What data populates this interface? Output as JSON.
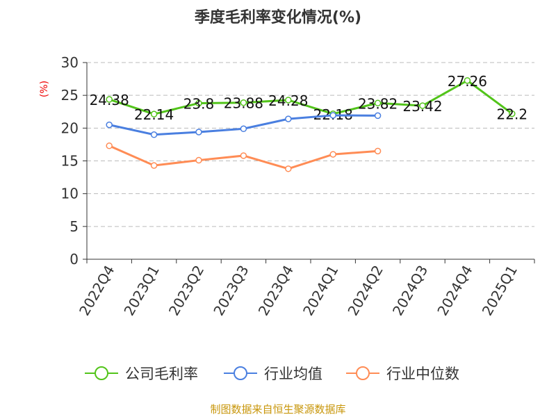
{
  "chart_data": {
    "type": "line",
    "title": "季度毛利率变化情况(%)",
    "ylabel": "(%)",
    "xlabel": "",
    "ylim": [
      0,
      30
    ],
    "yticks": [
      0,
      5,
      10,
      15,
      20,
      25,
      30
    ],
    "grid": true,
    "legend_position": "bottom",
    "categories": [
      "2022Q4",
      "2023Q1",
      "2023Q2",
      "2023Q3",
      "2023Q4",
      "2024Q1",
      "2024Q2",
      "2024Q3",
      "2024Q4",
      "2025Q1"
    ],
    "series": [
      {
        "name": "公司毛利率",
        "color": "#52c41a",
        "values": [
          24.38,
          22.14,
          23.8,
          23.88,
          24.28,
          22.18,
          23.82,
          23.42,
          27.26,
          22.2
        ],
        "labels": [
          "24.38",
          "22.14",
          "23.8",
          "23.88",
          "24.28",
          "22.18",
          "23.82",
          "23.42",
          "27.26",
          "22.2"
        ]
      },
      {
        "name": "行业均值",
        "color": "#4a7fe0",
        "values": [
          20.5,
          19.0,
          19.4,
          19.9,
          21.4,
          21.95,
          21.9,
          null,
          null,
          null
        ]
      },
      {
        "name": "行业中位数",
        "color": "#ff8c55",
        "values": [
          17.3,
          14.3,
          15.1,
          15.8,
          13.8,
          16.0,
          16.5,
          null,
          null,
          null
        ]
      }
    ]
  },
  "footer": "制图数据来自恒生聚源数据库"
}
